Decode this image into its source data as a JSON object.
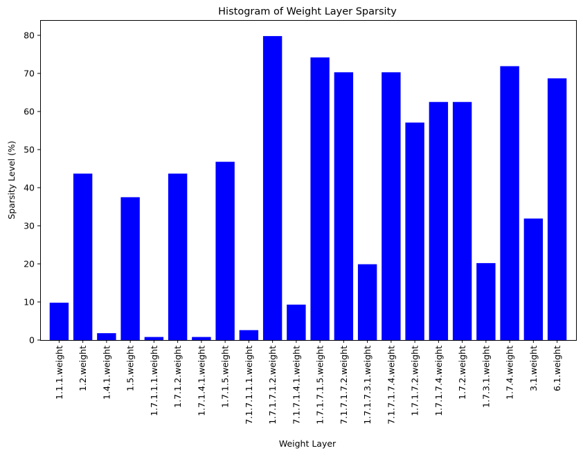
{
  "chart_data": {
    "type": "bar",
    "title": "Histogram of Weight Layer Sparsity",
    "xlabel": "Weight Layer",
    "ylabel": "Sparsity Level (%)",
    "categories": [
      "1.1.1.weight",
      "1.2.weight",
      "1.4.1.weight",
      "1.5.weight",
      "1.7.1.1.1.weight",
      "1.7.1.2.weight",
      "1.7.1.4.1.weight",
      "1.7.1.5.weight",
      "7.1.7.1.1.1.weight",
      "1.7.1.7.1.2.weight",
      "7.1.7.1.4.1.weight",
      "1.7.1.7.1.5.weight",
      "7.1.7.1.7.2.weight",
      "1.7.1.7.3.1.weight",
      "7.1.7.1.7.4.weight",
      "1.7.1.7.2.weight",
      "1.7.1.7.4.weight",
      "1.7.2.weight",
      "1.7.3.1.weight",
      "1.7.4.weight",
      "3.1.weight",
      "6.1.weight"
    ],
    "values": [
      9.8,
      43.7,
      1.8,
      37.5,
      0.8,
      43.7,
      0.8,
      46.8,
      2.6,
      79.8,
      9.3,
      74.2,
      70.3,
      19.9,
      70.3,
      57.1,
      62.5,
      62.5,
      20.2,
      71.9,
      31.9,
      68.7
    ],
    "ylim": [
      0,
      84
    ],
    "yticks": [
      0,
      10,
      20,
      30,
      40,
      50,
      60,
      70,
      80
    ],
    "bar_color": "#0000ff",
    "grid": false
  }
}
